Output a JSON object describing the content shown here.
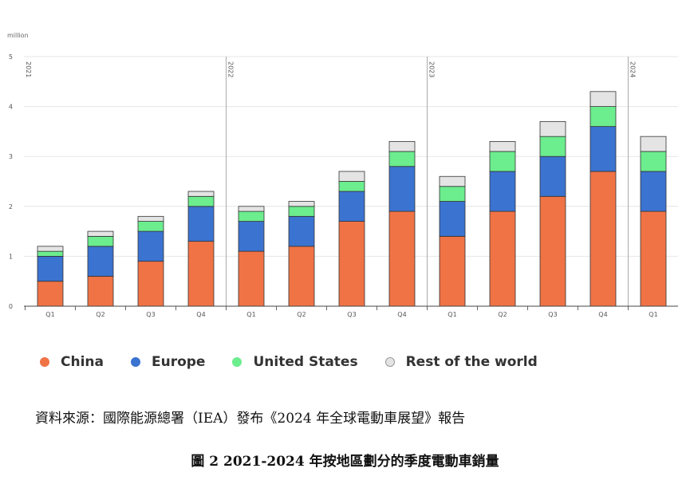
{
  "chart_data": {
    "type": "bar",
    "stacked": true,
    "unit_label": "million",
    "ylim": [
      0,
      5
    ],
    "yticks": [
      0,
      1,
      2,
      3,
      4,
      5
    ],
    "grid": true,
    "categories": [
      "Q1",
      "Q2",
      "Q3",
      "Q4",
      "Q1",
      "Q2",
      "Q3",
      "Q4",
      "Q1",
      "Q2",
      "Q3",
      "Q4",
      "Q1"
    ],
    "years": [
      {
        "label": "2021",
        "start_index": 0
      },
      {
        "label": "2022",
        "start_index": 4
      },
      {
        "label": "2023",
        "start_index": 8
      },
      {
        "label": "2024",
        "start_index": 12
      }
    ],
    "series": [
      {
        "name": "China",
        "color": "#f07346",
        "values": [
          0.5,
          0.6,
          0.9,
          1.3,
          1.1,
          1.2,
          1.7,
          1.9,
          1.4,
          1.9,
          2.2,
          2.7,
          1.9
        ]
      },
      {
        "name": "Europe",
        "color": "#3b73d0",
        "values": [
          0.5,
          0.6,
          0.6,
          0.7,
          0.6,
          0.6,
          0.6,
          0.9,
          0.7,
          0.8,
          0.8,
          0.9,
          0.8
        ]
      },
      {
        "name": "United States",
        "color": "#6ced8e",
        "values": [
          0.1,
          0.2,
          0.2,
          0.2,
          0.2,
          0.2,
          0.2,
          0.3,
          0.3,
          0.4,
          0.4,
          0.4,
          0.4
        ]
      },
      {
        "name": "Rest of the world",
        "color": "#e4e4e4",
        "values": [
          0.1,
          0.1,
          0.1,
          0.1,
          0.1,
          0.1,
          0.2,
          0.2,
          0.2,
          0.2,
          0.3,
          0.3,
          0.3
        ]
      }
    ]
  },
  "source_text": "資料來源：國際能源總署（IEA）發布《2024 年全球電動車展望》報告",
  "caption": "圖 2 2021-2024 年按地區劃分的季度電動車銷量"
}
